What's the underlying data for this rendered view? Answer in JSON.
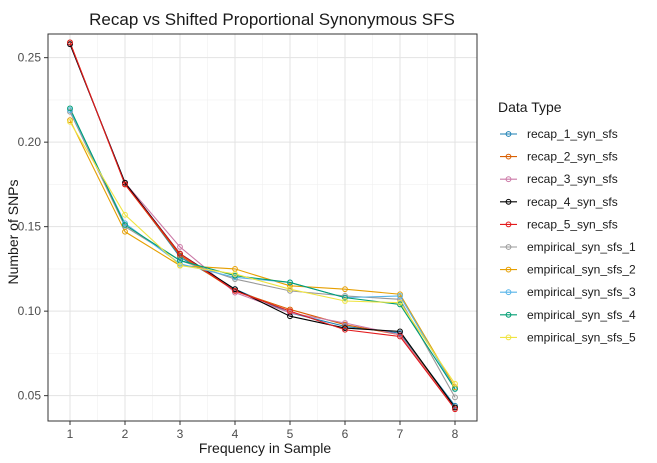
{
  "chart_data": {
    "type": "line",
    "title": "Recap vs Shifted Proportional Synonymous SFS",
    "xlabel": "Frequency in Sample",
    "ylabel": "Number of SNPs",
    "x": [
      1,
      2,
      3,
      4,
      5,
      6,
      7,
      8
    ],
    "xlim": [
      0.6,
      8.4
    ],
    "ylim": [
      0.035,
      0.264
    ],
    "yticks": [
      0.05,
      0.1,
      0.15,
      0.2,
      0.25
    ],
    "ytick_labels": [
      "0.05",
      "0.10",
      "0.15",
      "0.20",
      "0.25"
    ],
    "grid": true,
    "legend": {
      "title": "Data Type",
      "position": "right"
    },
    "series": [
      {
        "name": "recap_1_syn_sfs",
        "color": "#1b7fb3",
        "values": [
          0.258,
          0.176,
          0.132,
          0.113,
          0.099,
          0.091,
          0.087,
          0.044
        ]
      },
      {
        "name": "recap_2_syn_sfs",
        "color": "#d95f02",
        "values": [
          0.259,
          0.175,
          0.133,
          0.112,
          0.101,
          0.092,
          0.086,
          0.043
        ]
      },
      {
        "name": "recap_3_syn_sfs",
        "color": "#cc79a7",
        "values": [
          0.258,
          0.176,
          0.138,
          0.111,
          0.099,
          0.093,
          0.086,
          0.042
        ]
      },
      {
        "name": "recap_4_syn_sfs",
        "color": "#000000",
        "values": [
          0.258,
          0.176,
          0.134,
          0.113,
          0.097,
          0.09,
          0.088,
          0.043
        ]
      },
      {
        "name": "recap_5_syn_sfs",
        "color": "#e31a1c",
        "values": [
          0.259,
          0.175,
          0.134,
          0.112,
          0.1,
          0.089,
          0.085,
          0.042
        ]
      },
      {
        "name": "empirical_syn_sfs_1",
        "color": "#999999",
        "values": [
          0.218,
          0.15,
          0.13,
          0.119,
          0.112,
          0.109,
          0.107,
          0.049
        ]
      },
      {
        "name": "empirical_syn_sfs_2",
        "color": "#e69f00",
        "values": [
          0.213,
          0.147,
          0.127,
          0.125,
          0.115,
          0.113,
          0.11,
          0.055
        ]
      },
      {
        "name": "empirical_syn_sfs_3",
        "color": "#56b4e9",
        "values": [
          0.219,
          0.152,
          0.128,
          0.12,
          0.117,
          0.108,
          0.109,
          0.054
        ]
      },
      {
        "name": "empirical_syn_sfs_4",
        "color": "#009e73",
        "values": [
          0.22,
          0.151,
          0.13,
          0.121,
          0.117,
          0.108,
          0.104,
          0.054
        ]
      },
      {
        "name": "empirical_syn_sfs_5",
        "color": "#f0e442",
        "values": [
          0.212,
          0.157,
          0.127,
          0.122,
          0.113,
          0.106,
          0.105,
          0.057
        ]
      }
    ]
  }
}
